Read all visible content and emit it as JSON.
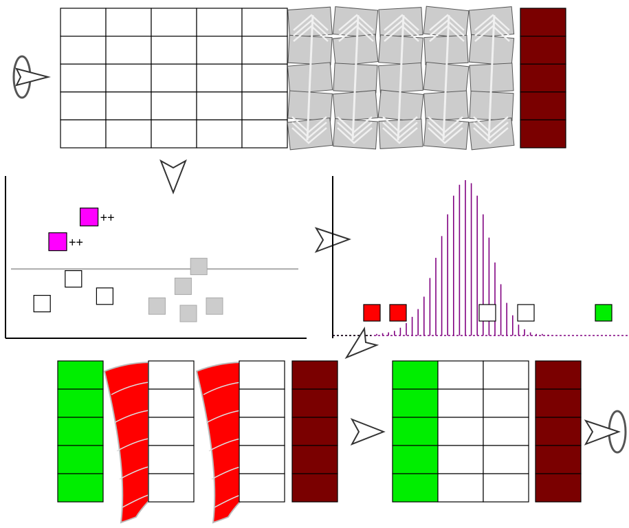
{
  "colors": {
    "white": "#ffffff",
    "gray": "#cccccc",
    "gray_stroke": "#a8a8a8",
    "dark_red": "#7a0000",
    "red": "#ff0000",
    "green": "#00ee00",
    "magenta": "#ff00ff",
    "purple": "#800080",
    "arrow_fill": "#ffffff",
    "arrow_stroke": "#333333",
    "line": "#000000"
  },
  "grid": {
    "rows": 5,
    "white_columns": 5,
    "gray_columns": 5,
    "dark_red_columns": 1
  },
  "scatter": {
    "boosted_markers": [
      {
        "label": "++",
        "x": 1.6,
        "y": 4.9
      },
      {
        "label": "++",
        "x": 1.0,
        "y": 3.9
      }
    ],
    "white_markers": [
      {
        "x": 1.3,
        "y": 2.4
      },
      {
        "x": 0.7,
        "y": 1.4
      },
      {
        "x": 1.9,
        "y": 1.7
      }
    ],
    "gray_markers": [
      {
        "x": 3.7,
        "y": 2.9
      },
      {
        "x": 3.4,
        "y": 2.1
      },
      {
        "x": 2.9,
        "y": 1.3
      },
      {
        "x": 3.5,
        "y": 1.0
      },
      {
        "x": 4.0,
        "y": 1.3
      }
    ],
    "threshold_y": 2.8
  },
  "distribution": {
    "spike_heights": [
      0.01,
      0.015,
      0.02,
      0.03,
      0.05,
      0.08,
      0.12,
      0.17,
      0.25,
      0.37,
      0.5,
      0.64,
      0.78,
      0.9,
      0.97,
      1.0,
      0.98,
      0.9,
      0.78,
      0.63,
      0.47,
      0.33,
      0.21,
      0.13,
      0.07,
      0.04,
      0.02,
      0.01,
      0.01,
      0.005
    ],
    "red_markers": 2,
    "white_markers": 2,
    "green_markers": 1
  },
  "bottom_left": {
    "rows": 5,
    "groups": [
      "green",
      "red-curved",
      "white",
      "red-curved",
      "white",
      "dark-red"
    ]
  },
  "bottom_right": {
    "rows": 5,
    "groups": [
      "green",
      "white",
      "white",
      "dark-red"
    ]
  }
}
